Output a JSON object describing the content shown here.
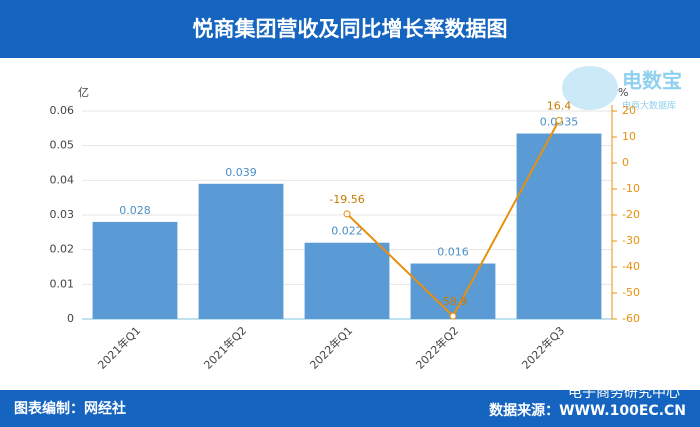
{
  "chart_data": {
    "type": "bar",
    "title": "悦商集团营收及同比增长率数据图",
    "y_unit": "亿",
    "y2_unit": "%",
    "categories": [
      "2021年Q1",
      "2021年Q2",
      "2022年Q1",
      "2022年Q2",
      "2022年Q3"
    ],
    "series": [
      {
        "type": "bar",
        "color": "#5b9bd5",
        "values": [
          0.028,
          0.039,
          0.022,
          0.016,
          0.0535
        ]
      },
      {
        "type": "line",
        "axis": "y2",
        "color": "#e8900c",
        "values": [
          null,
          null,
          -19.56,
          -58.9,
          16.4
        ],
        "value_labels": [
          null,
          null,
          "-19.56",
          "-58.9",
          "16.4"
        ]
      }
    ],
    "ylim": [
      0,
      0.06
    ],
    "yticks": [
      0,
      0.01,
      0.02,
      0.03,
      0.04,
      0.05,
      0.06
    ],
    "y2lim": [
      -60,
      20
    ],
    "y2ticks": [
      -60,
      -50,
      -40,
      -30,
      -20,
      -10,
      0,
      10,
      20
    ],
    "grid": true
  },
  "footer": {
    "credit": "图表编制：网经社",
    "source": "数据来源：WWW.100EC.CN"
  },
  "watermark": "电子商务研究中心",
  "logo": {
    "name": "电数宝",
    "subtitle": "电商大数据库"
  }
}
